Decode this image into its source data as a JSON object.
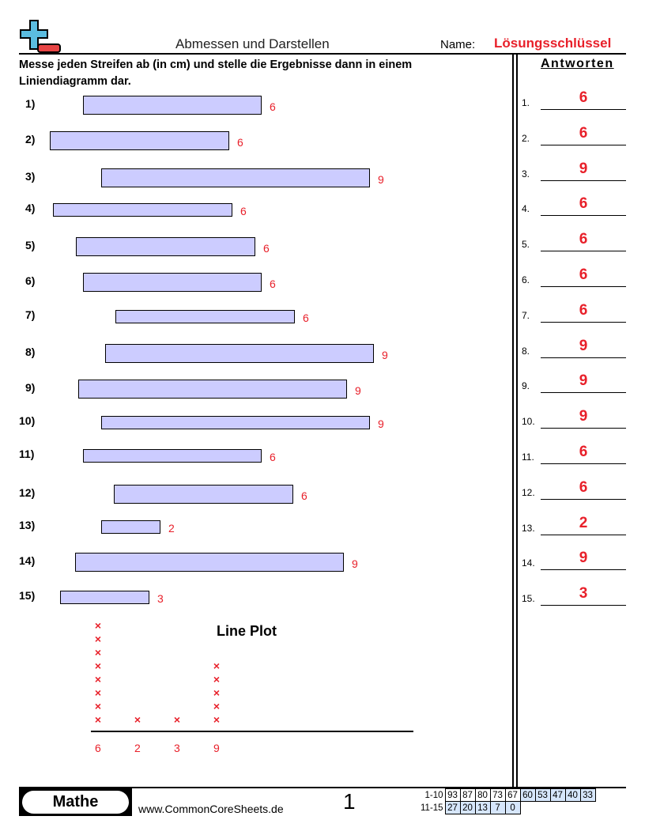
{
  "header": {
    "title": "Abmessen und Darstellen",
    "name_label": "Name:",
    "name_value": "Lösungsschlüssel"
  },
  "instructions": "Messe jeden Streifen ab (in cm) und stelle die Ergebnisse dann in einem Liniendiagramm dar.",
  "answers_heading": "Antworten",
  "questions": [
    {
      "label": "1)",
      "value": "6"
    },
    {
      "label": "2)",
      "value": "6"
    },
    {
      "label": "3)",
      "value": "9"
    },
    {
      "label": "4)",
      "value": "6"
    },
    {
      "label": "5)",
      "value": "6"
    },
    {
      "label": "6)",
      "value": "6"
    },
    {
      "label": "7)",
      "value": "6"
    },
    {
      "label": "8)",
      "value": "9"
    },
    {
      "label": "9)",
      "value": "9"
    },
    {
      "label": "10)",
      "value": "9"
    },
    {
      "label": "11)",
      "value": "6"
    },
    {
      "label": "12)",
      "value": "6"
    },
    {
      "label": "13)",
      "value": "2"
    },
    {
      "label": "14)",
      "value": "9"
    },
    {
      "label": "15)",
      "value": "3"
    }
  ],
  "answers": [
    {
      "num": "1.",
      "value": "6"
    },
    {
      "num": "2.",
      "value": "6"
    },
    {
      "num": "3.",
      "value": "9"
    },
    {
      "num": "4.",
      "value": "6"
    },
    {
      "num": "5.",
      "value": "6"
    },
    {
      "num": "6.",
      "value": "6"
    },
    {
      "num": "7.",
      "value": "6"
    },
    {
      "num": "8.",
      "value": "9"
    },
    {
      "num": "9.",
      "value": "9"
    },
    {
      "num": "10.",
      "value": "9"
    },
    {
      "num": "11.",
      "value": "6"
    },
    {
      "num": "12.",
      "value": "6"
    },
    {
      "num": "13.",
      "value": "2"
    },
    {
      "num": "14.",
      "value": "9"
    },
    {
      "num": "15.",
      "value": "3"
    }
  ],
  "line_plot": {
    "title": "Line Plot",
    "mark": "×",
    "categories": [
      {
        "label": "6",
        "count": 8
      },
      {
        "label": "2",
        "count": 1
      },
      {
        "label": "3",
        "count": 1
      },
      {
        "label": "9",
        "count": 5
      }
    ]
  },
  "footer": {
    "subject": "Mathe",
    "website": "www.CommonCoreSheets.de",
    "page": "1",
    "score_rows": [
      {
        "label": "1-10",
        "scores": [
          "93",
          "87",
          "80",
          "73",
          "67",
          "60",
          "53",
          "47",
          "40",
          "33"
        ]
      },
      {
        "label": "11-15",
        "scores": [
          "27",
          "20",
          "13",
          "7",
          "0"
        ]
      }
    ]
  },
  "colors": {
    "bar_fill": "#ccccff",
    "answer_red": "#e8202a",
    "score_shade": "#d6e6fb"
  }
}
